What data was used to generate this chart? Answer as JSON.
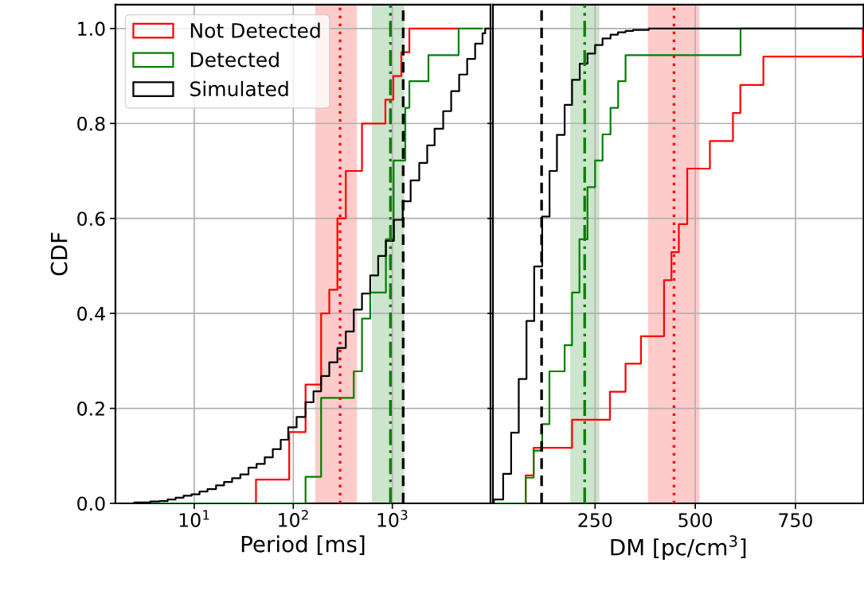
{
  "chart_data": [
    {
      "type": "step",
      "xlabel": "Period [ms]",
      "ylabel": "CDF",
      "log": "x",
      "grid": true,
      "legend": "top left",
      "xlim": [
        1.6,
        9800
      ],
      "xticks": [
        {
          "value": 10,
          "label": "10$^{1}$"
        },
        {
          "value": 100,
          "label": "10$^{2}$"
        },
        {
          "value": 1000,
          "label": "10$^{3}$"
        }
      ],
      "ylim": [
        0,
        1.05
      ],
      "yticks": [
        {
          "value": 0,
          "label": "0.0"
        },
        {
          "value": 0.2,
          "label": "0.2"
        },
        {
          "value": 0.4,
          "label": "0.4"
        },
        {
          "value": 0.6,
          "label": "0.6"
        },
        {
          "value": 0.8,
          "label": "0.8"
        },
        {
          "value": 1.0,
          "label": "1.0"
        }
      ],
      "series": [
        {
          "name": "Not Detected",
          "color": "#ff0000",
          "x": [
            1.6,
            42,
            91,
            133,
            191,
            231,
            279,
            339,
            494,
            851,
            1024,
            1233,
            1486,
            4670
          ],
          "values": [
            0,
            0.05,
            0.15,
            0.25,
            0.4,
            0.45,
            0.6,
            0.7,
            0.8,
            0.85,
            0.9,
            0.95,
            1.0,
            1.0
          ]
        },
        {
          "name": "Detected",
          "color": "#008000",
          "x": [
            1.6,
            133,
            191,
            408,
            494,
            598,
            861,
            1030,
            1352,
            1486,
            2317,
            4670,
            8000
          ],
          "values": [
            0,
            0.056,
            0.222,
            0.278,
            0.389,
            0.444,
            0.556,
            0.722,
            0.833,
            0.889,
            0.944,
            1.0,
            1.0
          ]
        },
        {
          "name": "Simulated",
          "color": "#000000",
          "x": [
            1.6,
            2.48,
            3.6,
            4.47,
            5.39,
            6.48,
            7.81,
            9.4,
            11.3,
            13.6,
            16.6,
            20.0,
            24.1,
            29.2,
            35.3,
            42.6,
            51.5,
            62.1,
            74.7,
            88.9,
            108,
            133,
            160,
            191,
            231,
            279,
            339,
            408,
            494,
            598,
            720,
            861,
            1037,
            1273,
            1531,
            1870,
            2250,
            2673,
            3264,
            3928,
            4729,
            5698,
            6858,
            8147,
            8670,
            9800
          ],
          "values": [
            0,
            0.002,
            0.004,
            0.005,
            0.008,
            0.012,
            0.016,
            0.019,
            0.025,
            0.03,
            0.038,
            0.045,
            0.053,
            0.061,
            0.075,
            0.083,
            0.097,
            0.114,
            0.134,
            0.16,
            0.182,
            0.213,
            0.236,
            0.268,
            0.297,
            0.327,
            0.362,
            0.408,
            0.442,
            0.48,
            0.521,
            0.553,
            0.597,
            0.636,
            0.68,
            0.717,
            0.754,
            0.789,
            0.826,
            0.868,
            0.903,
            0.936,
            0.968,
            0.99,
            1.0,
            1.0
          ]
        }
      ],
      "ref_lines": [
        {
          "axis": "x",
          "value": 297,
          "color": "#ff0000",
          "line_style": "dotted"
        },
        {
          "axis": "x",
          "value": 957,
          "color": "#008000",
          "line_style": "dashdot"
        },
        {
          "axis": "x",
          "value": 1288,
          "color": "#000000",
          "line_style": "dashed"
        }
      ],
      "bands": [
        {
          "axis": "x",
          "from": 167,
          "to": 440,
          "color": "#fecbcb"
        },
        {
          "axis": "x",
          "from": 621,
          "to": 1321,
          "color": "#cce5cc"
        }
      ]
    },
    {
      "type": "step",
      "xlabel": "DM [pc/cm$^{3}$]",
      "grid": true,
      "tick_labels": "x",
      "xlim": [
        -5,
        920
      ],
      "xticks": [
        250,
        500,
        750
      ],
      "ylim": [
        0,
        1.05
      ],
      "yticks": [
        {
          "value": 0,
          "label": null
        },
        {
          "value": 0.2,
          "label": null
        },
        {
          "value": 0.4,
          "label": null
        },
        {
          "value": 0.6,
          "label": null
        },
        {
          "value": 0.8,
          "label": null
        },
        {
          "value": 1.0,
          "label": null
        }
      ],
      "series": [
        {
          "color": "#ff0000",
          "x": [
            -5,
            76.8,
            96.7,
            192.5,
            287,
            326,
            364.5,
            422,
            440.5,
            459,
            480,
            536.5,
            594,
            612.5,
            670,
            918
          ],
          "values": [
            0,
            0.059,
            0.117,
            0.176,
            0.235,
            0.294,
            0.352,
            0.47,
            0.529,
            0.588,
            0.705,
            0.763,
            0.822,
            0.881,
            0.941,
            1.0
          ]
        },
        {
          "color": "#008000",
          "x": [
            -5,
            76.8,
            96.7,
            118,
            136,
            174,
            192.5,
            211,
            231,
            250,
            268.6,
            288.5,
            307.5,
            326,
            613,
            920
          ],
          "values": [
            0,
            0.054,
            0.111,
            0.167,
            0.278,
            0.333,
            0.444,
            0.556,
            0.666,
            0.722,
            0.777,
            0.833,
            0.889,
            0.944,
            1.0,
            1.0
          ]
        },
        {
          "color": "#000000",
          "x": [
            -5,
            -2.9,
            20.6,
            40.5,
            59.5,
            78.8,
            98,
            117.9,
            136.3,
            154.8,
            174,
            192.5,
            211.7,
            231,
            250,
            268.6,
            288.5,
            307,
            326,
            345,
            384,
            920
          ],
          "values": [
            0,
            0.008,
            0.062,
            0.149,
            0.262,
            0.384,
            0.499,
            0.604,
            0.7,
            0.776,
            0.839,
            0.892,
            0.926,
            0.947,
            0.965,
            0.979,
            0.987,
            0.992,
            0.995,
            0.997,
            1.0,
            1.0
          ]
        }
      ],
      "ref_lines": [
        {
          "axis": "x",
          "value": 116.5,
          "color": "#000000",
          "line_style": "dashed"
        },
        {
          "axis": "x",
          "value": 224,
          "color": "#008000",
          "line_style": "dashdot"
        },
        {
          "axis": "x",
          "value": 447,
          "color": "#ff0000",
          "line_style": "dotted"
        }
      ],
      "bands": [
        {
          "axis": "x",
          "from": 188,
          "to": 260.7,
          "color": "#cce5cc"
        },
        {
          "axis": "x",
          "from": 382,
          "to": 510.7,
          "color": "#fecbcb"
        }
      ]
    }
  ]
}
